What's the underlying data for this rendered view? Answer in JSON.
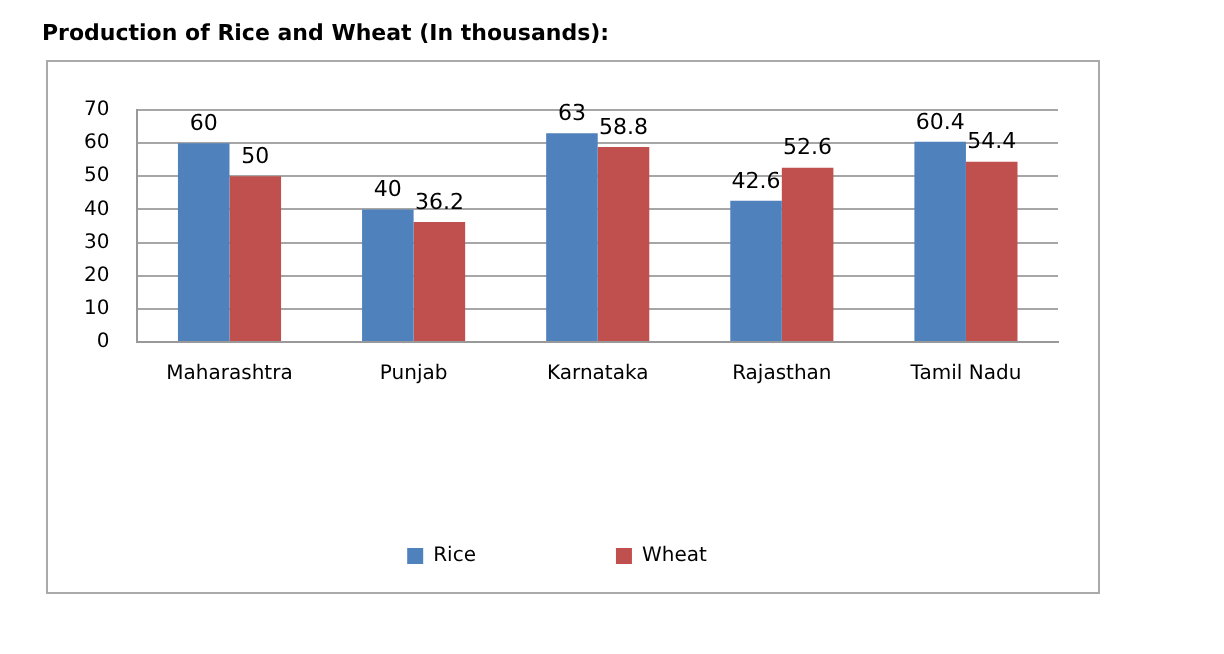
{
  "chart_data": {
    "type": "bar",
    "title": "Production of Rice and Wheat (In thousands):",
    "categories": [
      "Maharashtra",
      "Punjab",
      "Karnataka",
      "Rajasthan",
      "Tamil Nadu"
    ],
    "series": [
      {
        "name": "Rice",
        "color": "#4f81bd",
        "values": [
          60,
          40,
          63,
          42.6,
          60.4
        ]
      },
      {
        "name": "Wheat",
        "color": "#c0504d",
        "values": [
          50,
          36.2,
          58.8,
          52.6,
          54.4
        ]
      }
    ],
    "ylim": [
      0,
      70
    ],
    "yticks": [
      0,
      10,
      20,
      30,
      40,
      50,
      60,
      70
    ],
    "grid": "y",
    "legend": "bottom",
    "data_labels": true
  }
}
